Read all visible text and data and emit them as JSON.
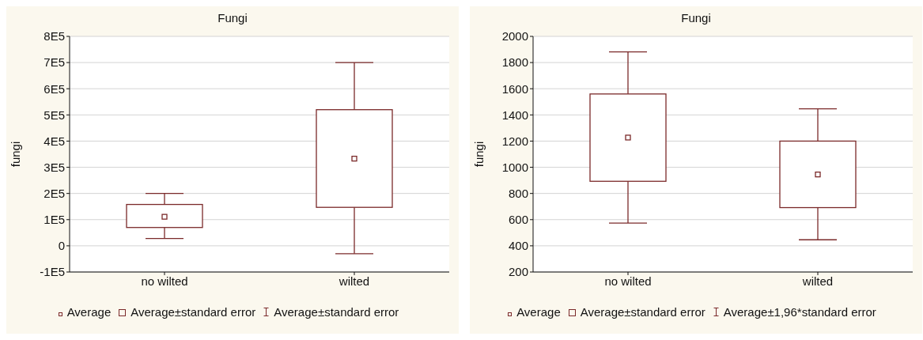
{
  "chart_data": [
    {
      "type": "box",
      "title": "Fungi",
      "ylabel": "fungi",
      "categories": [
        "no wilted",
        "wilted"
      ],
      "color": "#7b2a2a",
      "ylim": [
        -100000,
        800000
      ],
      "yticks": [
        {
          "value": -100000,
          "label": "-1E5"
        },
        {
          "value": 0,
          "label": "0"
        },
        {
          "value": 100000,
          "label": "1E5"
        },
        {
          "value": 200000,
          "label": "2E5"
        },
        {
          "value": 300000,
          "label": "3E5"
        },
        {
          "value": 400000,
          "label": "4E5"
        },
        {
          "value": 500000,
          "label": "5E5"
        },
        {
          "value": 600000,
          "label": "6E5"
        },
        {
          "value": 700000,
          "label": "7E5"
        },
        {
          "value": 800000,
          "label": "8E5"
        }
      ],
      "grid": "y",
      "boxes": [
        {
          "low": 28000,
          "q1": 70000,
          "median": 111000,
          "q3": 158000,
          "high": 200000
        },
        {
          "low": -30000,
          "q1": 147000,
          "median": 333000,
          "q3": 520000,
          "high": 700000
        }
      ],
      "annotations": [
        "Average",
        "Average±standard error",
        "Average±standard error"
      ]
    },
    {
      "type": "box",
      "title": "Fungi",
      "ylabel": "fungi",
      "categories": [
        "no wilted",
        "wilted"
      ],
      "color": "#7b2a2a",
      "ylim": [
        200,
        2000
      ],
      "yticks": [
        200,
        400,
        600,
        800,
        1000,
        1200,
        1400,
        1600,
        1800,
        2000
      ],
      "grid": "y",
      "boxes": [
        {
          "low": 574,
          "q1": 893,
          "median": 1227,
          "q3": 1560,
          "high": 1882
        },
        {
          "low": 446,
          "q1": 692,
          "median": 945,
          "q3": 1200,
          "high": 1447
        }
      ],
      "annotations": [
        "Average",
        "Average±standard error",
        "Average±1,96*standard error"
      ]
    }
  ]
}
